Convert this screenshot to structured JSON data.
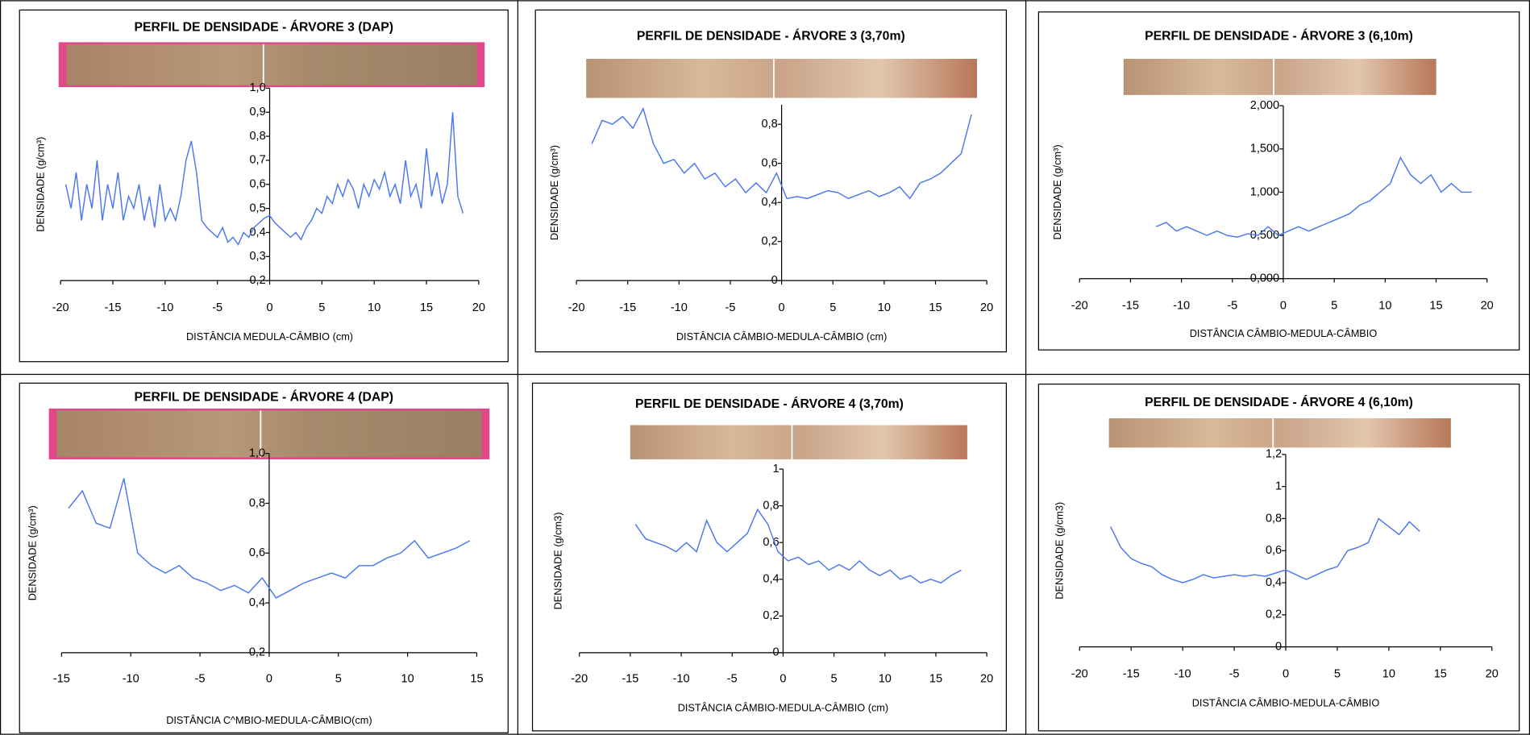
{
  "chart_data": [
    {
      "type": "line",
      "title": "PERFIL DE DENSIDADE - ÁRVORE 3 (DAP)",
      "x_label": "DISTÂNCIA MEDULA-CÂMBIO (cm)",
      "y_label": "DENSIDADE (g/cm³)",
      "color": "#4a78ee",
      "x": [
        -19.5,
        -19,
        -18.5,
        -18,
        -17.5,
        -17,
        -16.5,
        -16,
        -15.5,
        -15,
        -14.5,
        -14,
        -13.5,
        -13,
        -12.5,
        -12,
        -11.5,
        -11,
        -10.5,
        -10,
        -9.5,
        -9,
        -8.5,
        -8,
        -7.5,
        -7,
        -6.5,
        -6,
        -5.5,
        -5,
        -4.5,
        -4,
        -3.5,
        -3,
        -2.5,
        -2,
        -1.5,
        -1,
        -0.5,
        0,
        0.5,
        1,
        1.5,
        2,
        2.5,
        3,
        3.5,
        4,
        4.5,
        5,
        5.5,
        6,
        6.5,
        7,
        7.5,
        8,
        8.5,
        9,
        9.5,
        10,
        10.5,
        11,
        11.5,
        12,
        12.5,
        13,
        13.5,
        14,
        14.5,
        15,
        15.5,
        16,
        16.5,
        17,
        17.5,
        18,
        18.5
      ],
      "values": [
        0.6,
        0.5,
        0.65,
        0.45,
        0.6,
        0.5,
        0.7,
        0.45,
        0.6,
        0.5,
        0.65,
        0.45,
        0.55,
        0.5,
        0.6,
        0.45,
        0.55,
        0.42,
        0.6,
        0.45,
        0.5,
        0.45,
        0.55,
        0.7,
        0.78,
        0.65,
        0.45,
        0.42,
        0.4,
        0.38,
        0.42,
        0.36,
        0.38,
        0.35,
        0.4,
        0.38,
        0.42,
        0.44,
        0.46,
        0.47,
        0.44,
        0.42,
        0.4,
        0.38,
        0.4,
        0.37,
        0.42,
        0.45,
        0.5,
        0.48,
        0.55,
        0.52,
        0.6,
        0.55,
        0.62,
        0.58,
        0.5,
        0.6,
        0.55,
        0.62,
        0.58,
        0.65,
        0.55,
        0.6,
        0.52,
        0.7,
        0.55,
        0.6,
        0.5,
        0.75,
        0.55,
        0.65,
        0.52,
        0.6,
        0.9,
        0.55,
        0.48
      ],
      "xlim": [
        -20,
        20
      ],
      "xticks": [
        -20,
        -15,
        -10,
        -5,
        0,
        5,
        10,
        15,
        20
      ],
      "ylim": [
        0.2,
        1.0
      ],
      "yticks": [
        {
          "value": 0.2,
          "label": "0,2"
        },
        {
          "value": 0.3,
          "label": "0,3"
        },
        {
          "value": 0.4,
          "label": "0,4"
        },
        {
          "value": 0.5,
          "label": "0,5"
        },
        {
          "value": 0.6,
          "label": "0,6"
        },
        {
          "value": 0.7,
          "label": "0,7"
        },
        {
          "value": 0.8,
          "label": "0,8"
        },
        {
          "value": 0.9,
          "label": "0,9"
        },
        {
          "value": 1.0,
          "label": "1,0"
        }
      ]
    },
    {
      "type": "line",
      "title": "PERFIL DE DENSIDADE - ÁRVORE 3 (3,70m)",
      "x_label": "DISTÂNCIA CÂMBIO-MEDULA-CÂMBIO (cm)",
      "y_label": "DENSIDADE (g/cm³)",
      "color": "#4a78ee",
      "x": [
        -18.5,
        -17.5,
        -16.5,
        -15.5,
        -14.5,
        -13.5,
        -12.5,
        -11.5,
        -10.5,
        -9.5,
        -8.5,
        -7.5,
        -6.5,
        -5.5,
        -4.5,
        -3.5,
        -2.5,
        -1.5,
        -0.5,
        0.5,
        1.5,
        2.5,
        3.5,
        4.5,
        5.5,
        6.5,
        7.5,
        8.5,
        9.5,
        10.5,
        11.5,
        12.5,
        13.5,
        14.5,
        15.5,
        16.5,
        17.5,
        18.5
      ],
      "values": [
        0.7,
        0.82,
        0.8,
        0.84,
        0.78,
        0.88,
        0.7,
        0.6,
        0.62,
        0.55,
        0.6,
        0.52,
        0.55,
        0.48,
        0.52,
        0.45,
        0.5,
        0.45,
        0.55,
        0.42,
        0.43,
        0.42,
        0.44,
        0.46,
        0.45,
        0.42,
        0.44,
        0.46,
        0.43,
        0.45,
        0.48,
        0.42,
        0.5,
        0.52,
        0.55,
        0.6,
        0.65,
        0.85
      ],
      "xlim": [
        -20,
        20
      ],
      "xticks": [
        -20,
        -15,
        -10,
        -5,
        0,
        5,
        10,
        15,
        20
      ],
      "ylim": [
        0,
        0.9
      ],
      "yticks": [
        0,
        {
          "value": 0.2,
          "label": "0,2"
        },
        {
          "value": 0.4,
          "label": "0,4"
        },
        {
          "value": 0.6,
          "label": "0,6"
        },
        {
          "value": 0.8,
          "label": "0,8"
        }
      ]
    },
    {
      "type": "line",
      "title": "PERFIL DE DENSIDADE - ÁRVORE 3 (6,10m)",
      "x_label": "DISTÂNCIA CÂMBIO-MEDULA-CÂMBIO",
      "y_label": "DENSIDADE (g/cm³)",
      "color": "#4a78ee",
      "x": [
        -12.5,
        -11.5,
        -10.5,
        -9.5,
        -8.5,
        -7.5,
        -6.5,
        -5.5,
        -4.5,
        -3.5,
        -2.5,
        -1.5,
        -0.5,
        0.5,
        1.5,
        2.5,
        3.5,
        4.5,
        5.5,
        6.5,
        7.5,
        8.5,
        9.5,
        10.5,
        11.5,
        12.5,
        13.5,
        14.5,
        15.5,
        16.5,
        17.5,
        18.5
      ],
      "values": [
        0.6,
        0.65,
        0.55,
        0.6,
        0.55,
        0.5,
        0.55,
        0.5,
        0.48,
        0.52,
        0.5,
        0.6,
        0.5,
        0.55,
        0.6,
        0.55,
        0.6,
        0.65,
        0.7,
        0.75,
        0.85,
        0.9,
        1.0,
        1.1,
        1.4,
        1.2,
        1.1,
        1.2,
        1.0,
        1.1,
        1.0,
        1.0
      ],
      "xlim": [
        -20,
        20
      ],
      "xticks": [
        -20,
        -15,
        -10,
        -5,
        0,
        5,
        10,
        15,
        20
      ],
      "ylim": [
        0,
        2
      ],
      "yticks": [
        {
          "value": 0,
          "label": "0,000"
        },
        {
          "value": 0.5,
          "label": "0,500"
        },
        {
          "value": 1,
          "label": "1,000"
        },
        {
          "value": 1.5,
          "label": "1,500"
        },
        {
          "value": 2,
          "label": "2,000"
        }
      ]
    },
    {
      "type": "line",
      "title": "PERFIL DE DENSIDADE - ÁRVORE 4 (DAP)",
      "x_label": "DISTÂNCIA C^MBIO-MEDULA-CÂMBIO(cm)",
      "y_label": "DENSIDADE (g/cm³)",
      "color": "#4a78ee",
      "x": [
        -14.5,
        -13.5,
        -12.5,
        -11.5,
        -10.5,
        -9.5,
        -8.5,
        -7.5,
        -6.5,
        -5.5,
        -4.5,
        -3.5,
        -2.5,
        -1.5,
        -0.5,
        0.5,
        1.5,
        2.5,
        3.5,
        4.5,
        5.5,
        6.5,
        7.5,
        8.5,
        9.5,
        10.5,
        11.5,
        12.5,
        13.5,
        14.5
      ],
      "values": [
        0.78,
        0.85,
        0.72,
        0.7,
        0.9,
        0.6,
        0.55,
        0.52,
        0.55,
        0.5,
        0.48,
        0.45,
        0.47,
        0.44,
        0.5,
        0.42,
        0.45,
        0.48,
        0.5,
        0.52,
        0.5,
        0.55,
        0.55,
        0.58,
        0.6,
        0.65,
        0.58,
        0.6,
        0.62,
        0.65
      ],
      "xlim": [
        -15,
        15
      ],
      "xticks": [
        -15,
        -10,
        -5,
        0,
        5,
        10,
        15
      ],
      "ylim": [
        0.2,
        1.0
      ],
      "yticks": [
        {
          "value": 0.2,
          "label": "0,2"
        },
        {
          "value": 0.4,
          "label": "0,4"
        },
        {
          "value": 0.6,
          "label": "0,6"
        },
        {
          "value": 0.8,
          "label": "0,8"
        },
        {
          "value": 1.0,
          "label": "1,0"
        }
      ]
    },
    {
      "type": "line",
      "title": "PERFIL DE DENSIDADE - ÁRVORE 4 (3,70m)",
      "x_label": "DISTÂNCIA CÂMBIO-MEDULA-CÂMBIO (cm)",
      "y_label": "DENSIDADE (g/cm3)",
      "color": "#4a78ee",
      "x": [
        -14.5,
        -13.5,
        -12.5,
        -11.5,
        -10.5,
        -9.5,
        -8.5,
        -7.5,
        -6.5,
        -5.5,
        -4.5,
        -3.5,
        -2.5,
        -1.5,
        -0.5,
        0.5,
        1.5,
        2.5,
        3.5,
        4.5,
        5.5,
        6.5,
        7.5,
        8.5,
        9.5,
        10.5,
        11.5,
        12.5,
        13.5,
        14.5,
        15.5,
        16.5,
        17.5
      ],
      "values": [
        0.7,
        0.62,
        0.6,
        0.58,
        0.55,
        0.6,
        0.55,
        0.72,
        0.6,
        0.55,
        0.6,
        0.65,
        0.78,
        0.7,
        0.55,
        0.5,
        0.52,
        0.48,
        0.5,
        0.45,
        0.48,
        0.45,
        0.5,
        0.45,
        0.42,
        0.45,
        0.4,
        0.42,
        0.38,
        0.4,
        0.38,
        0.42,
        0.45
      ],
      "xlim": [
        -20,
        20
      ],
      "xticks": [
        -20,
        -15,
        -10,
        -5,
        0,
        5,
        10,
        15,
        20
      ],
      "ylim": [
        0,
        1
      ],
      "yticks": [
        0,
        {
          "value": 0.2,
          "label": "0,2"
        },
        {
          "value": 0.4,
          "label": "0,4"
        },
        {
          "value": 0.6,
          "label": "0,6"
        },
        {
          "value": 0.8,
          "label": "0,8"
        },
        1
      ]
    },
    {
      "type": "line",
      "title": "PERFIL DE DENSIDADE - ÁRVORE 4 (6,10m)",
      "x_label": "DISTÂNCIA CÂMBIO-MEDULA-CÂMBIO",
      "y_label": "DENSIDADE (g/cm3)",
      "color": "#4a78ee",
      "x": [
        -17,
        -16,
        -15,
        -14,
        -13,
        -12,
        -11,
        -10,
        -9,
        -8,
        -7,
        -6,
        -5,
        -4,
        -3,
        -2,
        -1,
        0,
        1,
        2,
        3,
        4,
        5,
        6,
        7,
        8,
        9,
        10,
        11,
        12,
        13
      ],
      "values": [
        0.75,
        0.62,
        0.55,
        0.52,
        0.5,
        0.45,
        0.42,
        0.4,
        0.42,
        0.45,
        0.43,
        0.44,
        0.45,
        0.44,
        0.45,
        0.44,
        0.46,
        0.48,
        0.45,
        0.42,
        0.45,
        0.48,
        0.5,
        0.6,
        0.62,
        0.65,
        0.8,
        0.75,
        0.7,
        0.78,
        0.72
      ],
      "xlim": [
        -20,
        20
      ],
      "xticks": [
        -20,
        -15,
        -10,
        -5,
        0,
        5,
        10,
        15,
        20
      ],
      "ylim": [
        0,
        1.2
      ],
      "yticks": [
        0,
        {
          "value": 0.2,
          "label": "0,2"
        },
        {
          "value": 0.4,
          "label": "0,4"
        },
        {
          "value": 0.6,
          "label": "0,6"
        },
        {
          "value": 0.8,
          "label": "0,8"
        },
        1,
        {
          "value": 1.2,
          "label": "1,2"
        }
      ]
    }
  ]
}
